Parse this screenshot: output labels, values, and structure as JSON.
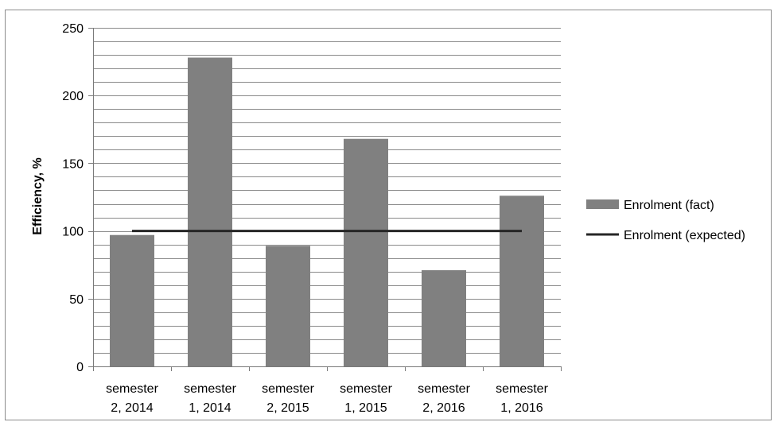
{
  "chart_data": {
    "type": "bar",
    "title": "",
    "xlabel": "",
    "ylabel": "Efficiency, %",
    "ylim": [
      0,
      250
    ],
    "y_ticks": [
      0,
      50,
      100,
      150,
      200,
      250
    ],
    "minor_gridline_step": 10,
    "categories": [
      [
        "semester",
        "2, 2014"
      ],
      [
        "semester",
        "1, 2014"
      ],
      [
        "semester",
        "2, 2015"
      ],
      [
        "semester",
        "1, 2015"
      ],
      [
        "semester",
        "2, 2016"
      ],
      [
        "semester",
        "1, 2016"
      ]
    ],
    "series": [
      {
        "name": "Enrolment (fact)",
        "kind": "bar",
        "color": "#808080",
        "values": [
          97,
          228,
          89,
          168,
          71,
          126
        ]
      },
      {
        "name": "Enrolment (expected)",
        "kind": "line",
        "color": "#262626",
        "values": [
          100,
          100,
          100,
          100,
          100,
          100
        ]
      }
    ],
    "legend_position": "right",
    "grid": true
  }
}
